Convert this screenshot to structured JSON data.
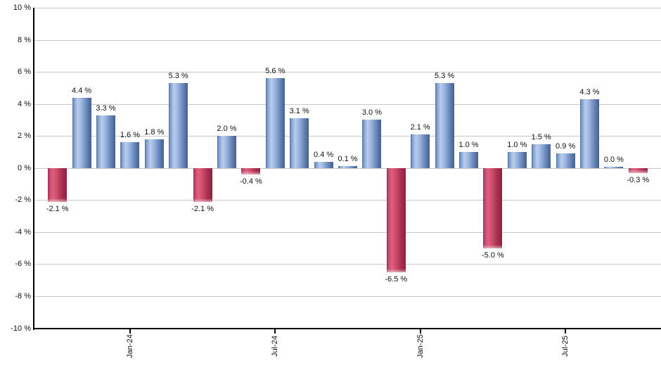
{
  "chart_data": {
    "type": "bar",
    "title": "",
    "xlabel": "",
    "ylabel": "",
    "ylim": [
      -10,
      10
    ],
    "grid": true,
    "legend": "none",
    "unit": "%",
    "values": [
      -2.1,
      4.4,
      3.3,
      1.6,
      1.8,
      5.3,
      -2.1,
      2.0,
      -0.4,
      5.6,
      3.1,
      0.4,
      0.1,
      3.0,
      -6.5,
      2.1,
      5.3,
      1.0,
      -5.0,
      1.0,
      1.5,
      0.9,
      4.3,
      0.0,
      -0.3
    ],
    "bar_labels": [
      "-2.1 %",
      "4.4 %",
      "3.3 %",
      "1.6 %",
      "1.8 %",
      "5.3 %",
      "-2.1 %",
      "2.0 %",
      "-0.4 %",
      "5.6 %",
      "3.1 %",
      "0.4 %",
      "0.1 %",
      "3.0 %",
      "-6.5 %",
      "2.1 %",
      "5.3 %",
      "1.0 %",
      "-5.0 %",
      "1.0 %",
      "1.5 %",
      "0.9 %",
      "4.3 %",
      "0.0 %",
      "-0.3 %"
    ],
    "x_ticks": [
      {
        "index": 3,
        "label": "Jan-24"
      },
      {
        "index": 9,
        "label": "Jul-24"
      },
      {
        "index": 15,
        "label": "Jan-25"
      },
      {
        "index": 21,
        "label": "Jul-25"
      }
    ],
    "y_ticks": [
      {
        "value": 10,
        "label": "10 %"
      },
      {
        "value": 8,
        "label": "8 %"
      },
      {
        "value": 6,
        "label": "6 %"
      },
      {
        "value": 4,
        "label": "4 %"
      },
      {
        "value": 2,
        "label": "2 %"
      },
      {
        "value": 0,
        "label": "0 %"
      },
      {
        "value": -2,
        "label": "-2 %"
      },
      {
        "value": -4,
        "label": "-4 %"
      },
      {
        "value": -6,
        "label": "-6 %"
      },
      {
        "value": -8,
        "label": "-8 %"
      },
      {
        "value": -10,
        "label": "-10 %"
      }
    ],
    "colors": {
      "positive_bar": "#6f93cd",
      "positive_highlight": "#b9cdec",
      "positive_edge": "#45608e",
      "negative_bar": "#c04061",
      "negative_highlight": "#e05f7e",
      "negative_edge": "#8e2040",
      "gridline": "#c8c8c8",
      "axis": "#000000",
      "label_text": "#111111",
      "background": "#ffffff"
    }
  }
}
